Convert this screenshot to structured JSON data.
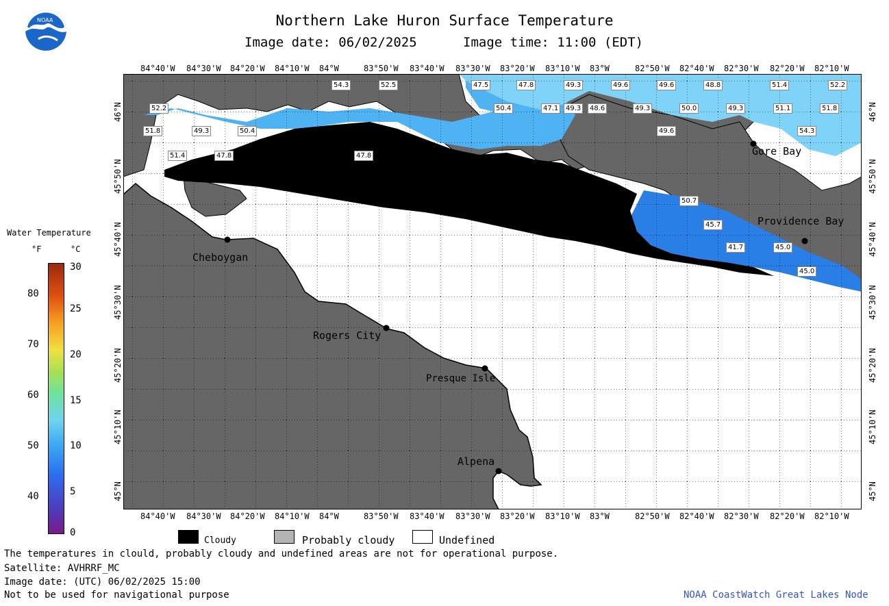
{
  "header": {
    "title": "Northern Lake Huron Surface Temperature",
    "image_date": "Image date: 06/02/2025",
    "image_time": "Image time: 11:00 (EDT)"
  },
  "logo": {
    "text": "NOAA"
  },
  "x_ticks": [
    "84°40'W",
    "84°30'W",
    "84°20'W",
    "84°10'W",
    "84°W",
    "83°50'W",
    "83°40'W",
    "83°30'W",
    "83°20'W",
    "83°10'W",
    "83°W",
    "82°50'W",
    "82°40'W",
    "82°30'W",
    "82°20'W",
    "82°10'W"
  ],
  "y_ticks": [
    "46°N",
    "45°50'N",
    "45°40'N",
    "45°30'N",
    "45°20'N",
    "45°10'N",
    "45°N"
  ],
  "places": {
    "cheboygan": "Cheboygan",
    "rogers_city": "Rogers City",
    "presque_isle": "Presque Isle",
    "alpena": "Alpena",
    "gore_bay": "Gore Bay",
    "providence_bay": "Providence Bay"
  },
  "temp_labels": [
    "54.3",
    "52.5",
    "47.5",
    "47.8",
    "49.3",
    "49.6",
    "49.6",
    "48.8",
    "52.2",
    "51.4",
    "49.3",
    "52.2",
    "50.4",
    "47.1",
    "48.6",
    "49.3",
    "50.0",
    "49.3",
    "51.1",
    "51.8",
    "51.8",
    "49.3",
    "50.4",
    "49.6",
    "54.3",
    "51.4",
    "47.8",
    "47.8",
    "50.7",
    "45.7",
    "45.0",
    "41.7",
    "45.0"
  ],
  "colorbar": {
    "title": "Water Temperature",
    "unit_f": "°F",
    "unit_c": "°C",
    "f_ticks": [
      "80",
      "70",
      "60",
      "50",
      "40"
    ],
    "c_ticks": [
      "30",
      "25",
      "20",
      "15",
      "10",
      "5",
      "0"
    ]
  },
  "legend": {
    "cloudy": "Cloudy",
    "probably_cloudy": "Probably cloudy",
    "undefined": "Undefined"
  },
  "footer": {
    "disclaimer": "The temperatures in clould, probably cloudy and undefined areas are not for operational purpose.",
    "satellite": "Satellite: AVHRRF_MC",
    "utc_date": "Image date: (UTC) 06/02/2025  15:00",
    "nav": "Not to be used for navigational purpose",
    "credit": "NOAA CoastWatch Great Lakes Node"
  },
  "colors": {
    "land": "#666666",
    "cloud": "#000000",
    "water_light": "#6ec8f5",
    "water_mid": "#3a9cf0",
    "water_deep": "#1e6ae0",
    "credit": "#3355cc"
  }
}
